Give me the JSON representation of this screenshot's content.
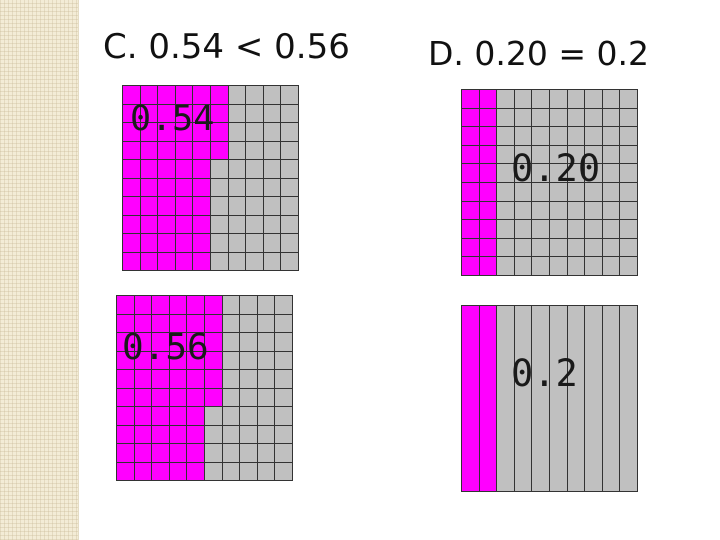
{
  "headings": {
    "c": "C.  0.54 < 0.56",
    "d": "D.  0.20 = 0.2"
  },
  "grids": {
    "g054": {
      "label": "0.54",
      "type": "hundredths",
      "filled": 54
    },
    "g056": {
      "label": "0.56",
      "type": "hundredths",
      "filled": 56
    },
    "g020": {
      "label": "0.20",
      "type": "hundredths",
      "filled": 20
    },
    "g02": {
      "label": "0.2",
      "type": "tenths",
      "filled": 2
    }
  },
  "colors": {
    "filled": "#ff00ff",
    "empty": "#c0c0c0",
    "line": "#333333"
  }
}
